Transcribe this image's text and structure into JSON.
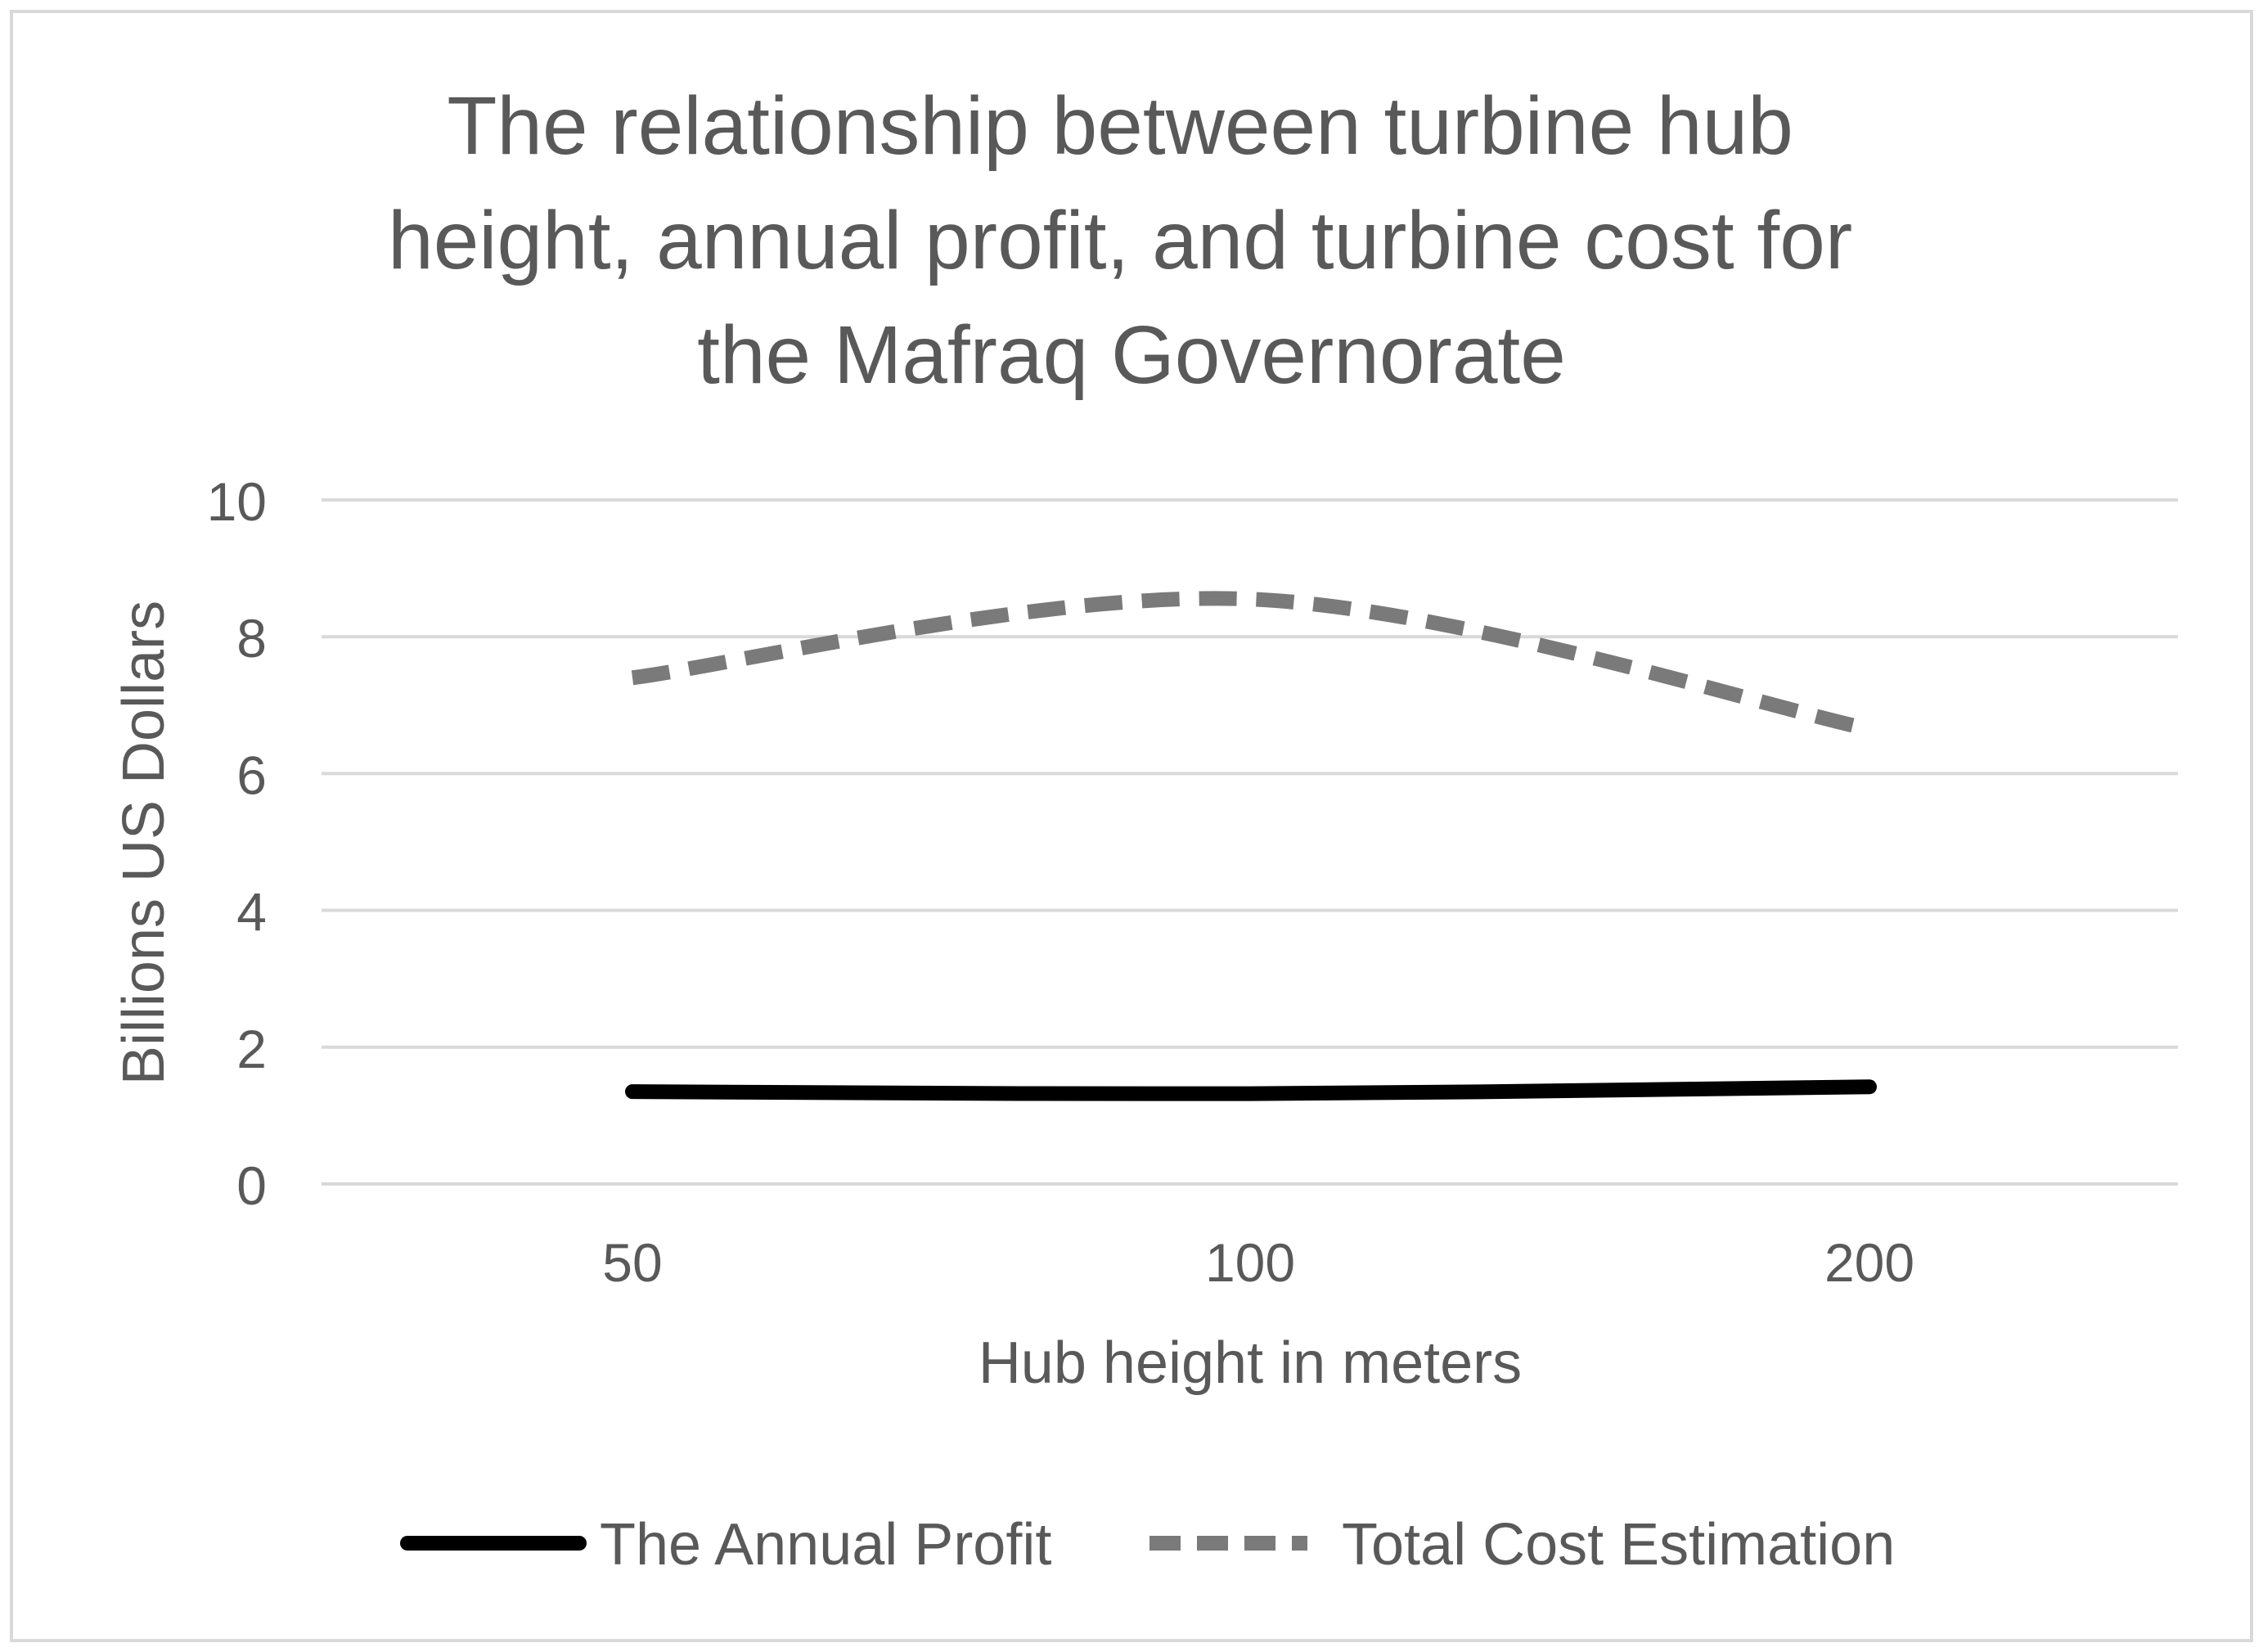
{
  "chart_data": {
    "type": "line",
    "title_lines": [
      "The relationship between turbine hub",
      "height, annual profit, and turbine cost for",
      "the Mafraq Governorate"
    ],
    "xlabel": "Hub height in meters",
    "ylabel": "Billions US Dollars",
    "categories": [
      "50",
      "100",
      "200"
    ],
    "ylim": [
      0,
      10
    ],
    "y_ticks": [
      0,
      2,
      4,
      6,
      8,
      10
    ],
    "grid": true,
    "legend_position": "bottom",
    "smooth": true,
    "series": [
      {
        "name": "The Annual Profit",
        "values": [
          1.35,
          1.32,
          1.42
        ],
        "color": "#000000",
        "dash": "solid"
      },
      {
        "name": "Total Cost Estimation",
        "values": [
          7.4,
          8.55,
          6.65
        ],
        "color": "#7a7a7a",
        "dash": "dashed"
      }
    ]
  }
}
